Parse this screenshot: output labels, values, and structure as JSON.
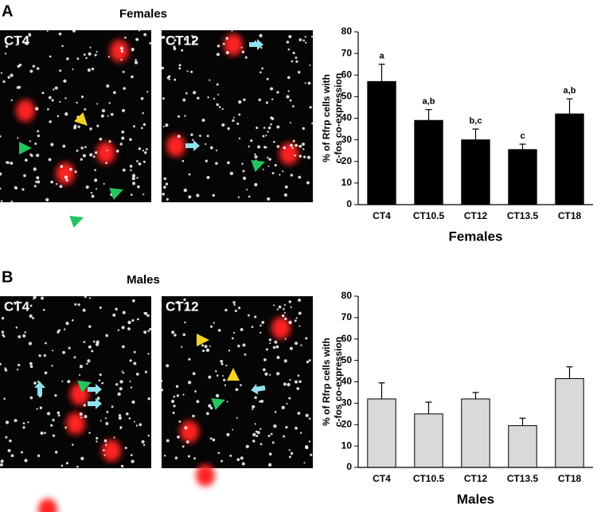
{
  "panels": [
    {
      "label": "A",
      "title": "Females",
      "images": [
        "CT4",
        "CT12"
      ]
    },
    {
      "label": "B",
      "title": "Males",
      "images": [
        "CT4",
        "CT12"
      ]
    }
  ],
  "chart_data": [
    {
      "type": "bar",
      "categories": [
        "CT4",
        "CT10.5",
        "CT12",
        "CT13.5",
        "CT18"
      ],
      "values": [
        57,
        39,
        30,
        25.5,
        42
      ],
      "errors": [
        8,
        5,
        5,
        2.5,
        7
      ],
      "annotations": [
        "a",
        "a,b",
        "b,c",
        "c",
        "a,b"
      ],
      "color": "#000000",
      "ylabel": [
        "% of Rfrp cells with",
        "c-fos co-expression"
      ],
      "xlabel": "Females",
      "ylim": [
        0,
        80
      ],
      "yticks": [
        0,
        10,
        20,
        30,
        40,
        50,
        60,
        70,
        80
      ]
    },
    {
      "type": "bar",
      "categories": [
        "CT4",
        "CT10.5",
        "CT12",
        "CT13.5",
        "CT18"
      ],
      "values": [
        32,
        25,
        32,
        19.5,
        41.5
      ],
      "errors": [
        7.5,
        5.5,
        3,
        3.5,
        5.5
      ],
      "color": "#d9d9d9",
      "ylabel": [
        "% of Rfrp cells with",
        "c-fos co-expression"
      ],
      "xlabel": "Males",
      "ylim": [
        0,
        80
      ],
      "yticks": [
        0,
        10,
        20,
        30,
        40,
        50,
        60,
        70,
        80
      ]
    }
  ]
}
